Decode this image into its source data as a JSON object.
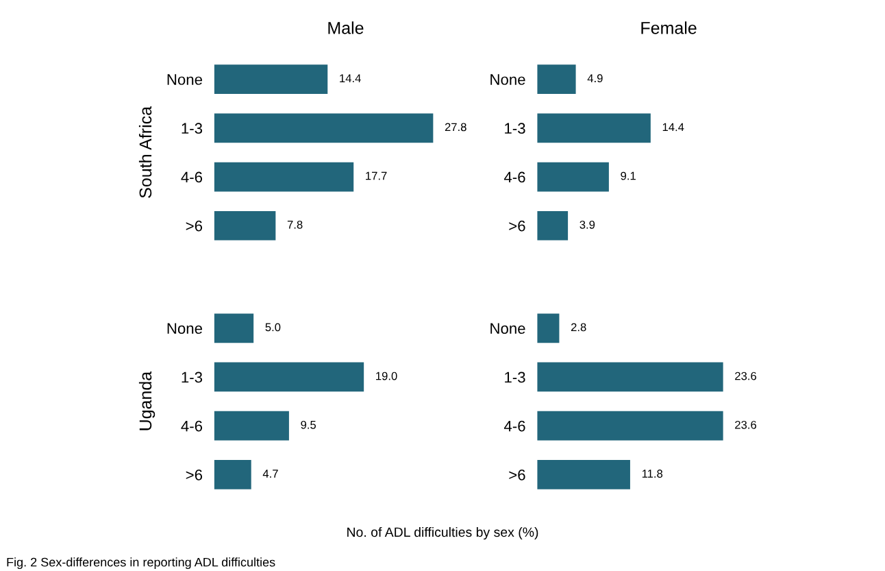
{
  "chart_data": [
    {
      "type": "bar",
      "orientation": "horizontal",
      "title": "Male",
      "ylabel": "South Africa",
      "categories": [
        "None",
        "1-3",
        "4-6",
        ">6"
      ],
      "values": [
        14.4,
        27.8,
        17.7,
        7.8
      ],
      "color": "#22667b",
      "data_labels": true,
      "tick_labels": "y"
    },
    {
      "type": "bar",
      "orientation": "horizontal",
      "title": "Female",
      "categories": [
        "None",
        "1-3",
        "4-6",
        ">6"
      ],
      "values": [
        4.9,
        14.4,
        9.1,
        3.9
      ],
      "color": "#22667b",
      "data_labels": true,
      "tick_labels": "y"
    },
    {
      "type": "bar",
      "orientation": "horizontal",
      "ylabel": "Uganda",
      "categories": [
        "None",
        "1-3",
        "4-6",
        ">6"
      ],
      "values": [
        5.0,
        19.0,
        9.5,
        4.7
      ],
      "value_labels": [
        "5.0",
        "19.0",
        "9.5",
        "4.7"
      ],
      "color": "#22667b",
      "tick_labels": "y"
    },
    {
      "type": "bar",
      "orientation": "horizontal",
      "categories": [
        "None",
        "1-3",
        "4-6",
        ">6"
      ],
      "values": [
        2.8,
        23.6,
        23.6,
        11.8
      ],
      "color": "#22667b",
      "data_labels": true,
      "tick_labels": "y",
      "annotations": [
        "No. of ADL difficulties by sex (%)",
        "Fig. 2 Sex-differences in reporting ADL difficulties"
      ]
    }
  ]
}
